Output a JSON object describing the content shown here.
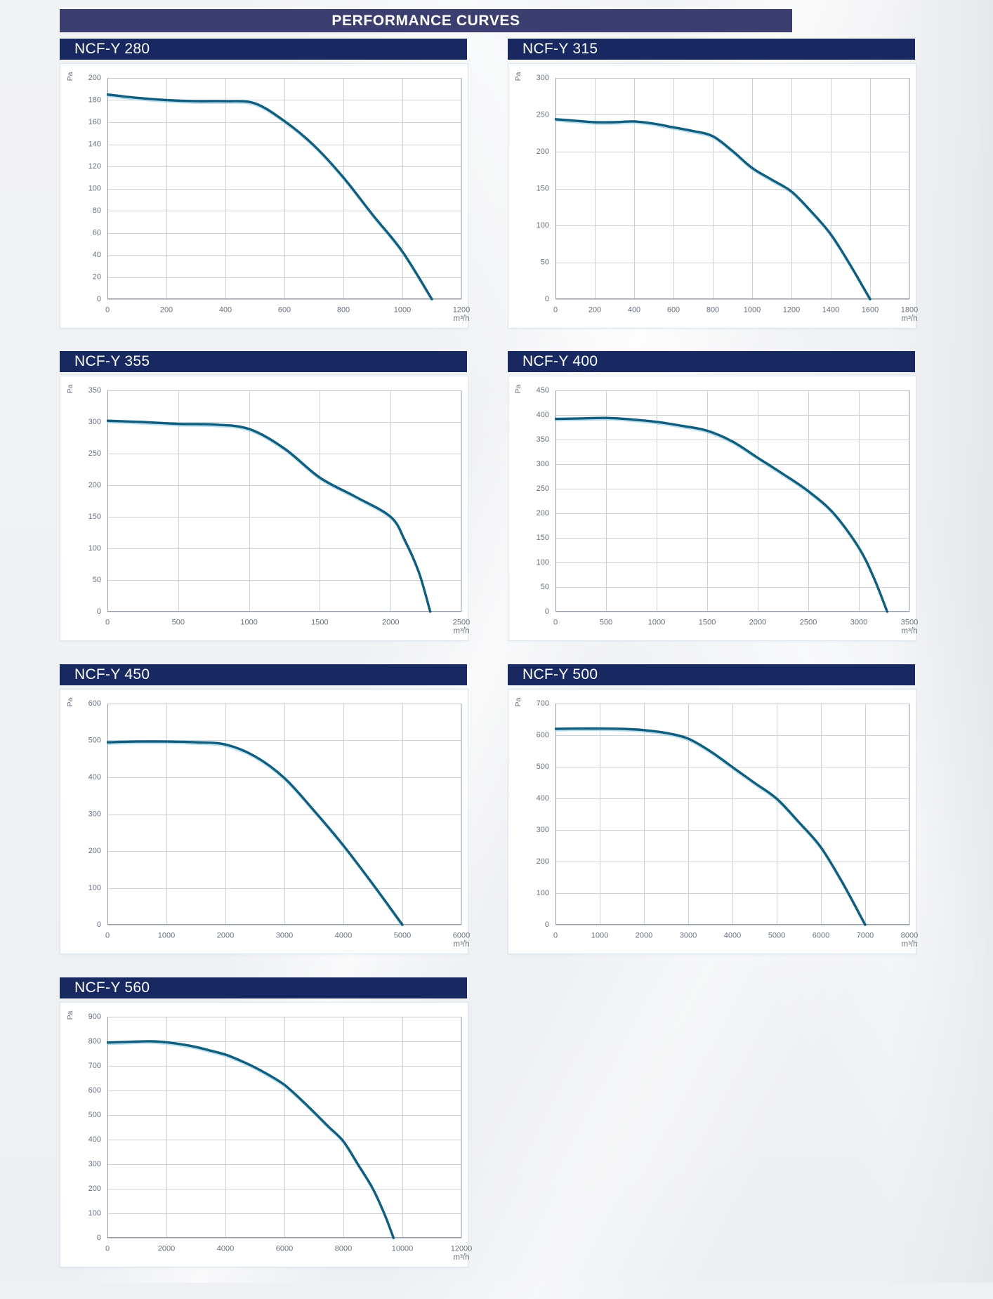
{
  "page": {
    "title": "PERFORMANCE CURVES"
  },
  "colors": {
    "header_bar": "#3a3f70",
    "title_bar": "#182861",
    "grid": "#cdd1d8",
    "frame": "#949ba7",
    "frame_light": "#c3c8d0",
    "label": "#68717e",
    "curve": "#115d7d",
    "curve_glow": "#8fd0e6",
    "card_border": "#d9e5ef"
  },
  "chart_data": [
    {
      "type": "line",
      "title": "NCF-Y 280",
      "y_unit": "Pa",
      "x_unit": "m³/h",
      "xlim": [
        0,
        1200
      ],
      "ylim": [
        0,
        200
      ],
      "x_ticks": [
        0,
        200,
        400,
        600,
        800,
        1000,
        1200
      ],
      "y_ticks": [
        0,
        20,
        40,
        60,
        80,
        100,
        120,
        140,
        160,
        180,
        200
      ],
      "points": [
        [
          0,
          185
        ],
        [
          100,
          182
        ],
        [
          200,
          180
        ],
        [
          300,
          179
        ],
        [
          400,
          179
        ],
        [
          500,
          177
        ],
        [
          600,
          161
        ],
        [
          700,
          139
        ],
        [
          800,
          110
        ],
        [
          900,
          76
        ],
        [
          1000,
          43
        ],
        [
          1100,
          0
        ]
      ]
    },
    {
      "type": "line",
      "title": "NCF-Y 315",
      "y_unit": "Pa",
      "x_unit": "m³/h",
      "xlim": [
        0,
        1800
      ],
      "ylim": [
        0,
        300
      ],
      "x_ticks": [
        0,
        200,
        400,
        600,
        800,
        1000,
        1200,
        1400,
        1600,
        1800
      ],
      "y_ticks": [
        0,
        50,
        100,
        150,
        200,
        250,
        300
      ],
      "points": [
        [
          0,
          244
        ],
        [
          100,
          242
        ],
        [
          200,
          240
        ],
        [
          300,
          240
        ],
        [
          400,
          241
        ],
        [
          500,
          238
        ],
        [
          600,
          233
        ],
        [
          700,
          228
        ],
        [
          800,
          221
        ],
        [
          900,
          201
        ],
        [
          1000,
          178
        ],
        [
          1100,
          162
        ],
        [
          1200,
          146
        ],
        [
          1300,
          119
        ],
        [
          1400,
          88
        ],
        [
          1500,
          46
        ],
        [
          1600,
          0
        ]
      ]
    },
    {
      "type": "line",
      "title": "NCF-Y 355",
      "y_unit": "Pa",
      "x_unit": "m³/h",
      "xlim": [
        0,
        2500
      ],
      "ylim": [
        0,
        350
      ],
      "x_ticks": [
        0,
        500,
        1000,
        1500,
        2000,
        2500
      ],
      "y_ticks": [
        0,
        50,
        100,
        150,
        200,
        250,
        300,
        350
      ],
      "points": [
        [
          0,
          302
        ],
        [
          250,
          300
        ],
        [
          500,
          297
        ],
        [
          750,
          296
        ],
        [
          1000,
          289
        ],
        [
          1250,
          258
        ],
        [
          1500,
          212
        ],
        [
          1750,
          182
        ],
        [
          2000,
          150
        ],
        [
          2100,
          113
        ],
        [
          2200,
          62
        ],
        [
          2280,
          0
        ]
      ]
    },
    {
      "type": "line",
      "title": "NCF-Y 400",
      "y_unit": "Pa",
      "x_unit": "m³/h",
      "xlim": [
        0,
        3500
      ],
      "ylim": [
        0,
        450
      ],
      "x_ticks": [
        0,
        500,
        1000,
        1500,
        2000,
        2500,
        3000,
        3500
      ],
      "y_ticks": [
        0,
        50,
        100,
        150,
        200,
        250,
        300,
        350,
        400,
        450
      ],
      "points": [
        [
          0,
          392
        ],
        [
          250,
          393
        ],
        [
          500,
          394
        ],
        [
          750,
          391
        ],
        [
          1000,
          386
        ],
        [
          1250,
          378
        ],
        [
          1500,
          368
        ],
        [
          1750,
          346
        ],
        [
          2000,
          313
        ],
        [
          2250,
          280
        ],
        [
          2500,
          245
        ],
        [
          2750,
          200
        ],
        [
          3000,
          130
        ],
        [
          3150,
          68
        ],
        [
          3280,
          0
        ]
      ]
    },
    {
      "type": "line",
      "title": "NCF-Y 450",
      "y_unit": "Pa",
      "x_unit": "m³/h",
      "xlim": [
        0,
        6000
      ],
      "ylim": [
        0,
        600
      ],
      "x_ticks": [
        0,
        1000,
        2000,
        3000,
        4000,
        5000,
        6000
      ],
      "y_ticks": [
        0,
        100,
        200,
        300,
        400,
        500,
        600
      ],
      "points": [
        [
          0,
          495
        ],
        [
          500,
          497
        ],
        [
          1000,
          497
        ],
        [
          1500,
          495
        ],
        [
          2000,
          489
        ],
        [
          2500,
          457
        ],
        [
          3000,
          398
        ],
        [
          3500,
          310
        ],
        [
          4000,
          215
        ],
        [
          4500,
          110
        ],
        [
          5000,
          0
        ]
      ]
    },
    {
      "type": "line",
      "title": "NCF-Y 500",
      "y_unit": "Pa",
      "x_unit": "m³/h",
      "xlim": [
        0,
        8000
      ],
      "ylim": [
        0,
        700
      ],
      "x_ticks": [
        0,
        1000,
        2000,
        3000,
        4000,
        5000,
        6000,
        7000,
        8000
      ],
      "y_ticks": [
        0,
        100,
        200,
        300,
        400,
        500,
        600,
        700
      ],
      "points": [
        [
          0,
          620
        ],
        [
          500,
          621
        ],
        [
          1000,
          621
        ],
        [
          1500,
          620
        ],
        [
          2000,
          616
        ],
        [
          2500,
          607
        ],
        [
          3000,
          589
        ],
        [
          3500,
          549
        ],
        [
          4000,
          499
        ],
        [
          4500,
          449
        ],
        [
          5000,
          399
        ],
        [
          5500,
          325
        ],
        [
          6000,
          245
        ],
        [
          6500,
          130
        ],
        [
          7000,
          0
        ]
      ]
    },
    {
      "type": "line",
      "title": "NCF-Y 560",
      "y_unit": "Pa",
      "x_unit": "m³/h",
      "xlim": [
        0,
        12000
      ],
      "ylim": [
        0,
        900
      ],
      "x_ticks": [
        0,
        2000,
        4000,
        6000,
        8000,
        10000,
        12000
      ],
      "y_ticks": [
        0,
        100,
        200,
        300,
        400,
        500,
        600,
        700,
        800,
        900
      ],
      "points": [
        [
          0,
          795
        ],
        [
          500,
          797
        ],
        [
          1000,
          799
        ],
        [
          1500,
          800
        ],
        [
          2000,
          796
        ],
        [
          2500,
          788
        ],
        [
          3000,
          777
        ],
        [
          3500,
          762
        ],
        [
          4000,
          746
        ],
        [
          4500,
          722
        ],
        [
          5000,
          694
        ],
        [
          5500,
          661
        ],
        [
          6000,
          623
        ],
        [
          6500,
          570
        ],
        [
          7000,
          512
        ],
        [
          7500,
          452
        ],
        [
          8000,
          393
        ],
        [
          8500,
          298
        ],
        [
          9000,
          200
        ],
        [
          9400,
          95
        ],
        [
          9700,
          0
        ]
      ]
    }
  ]
}
